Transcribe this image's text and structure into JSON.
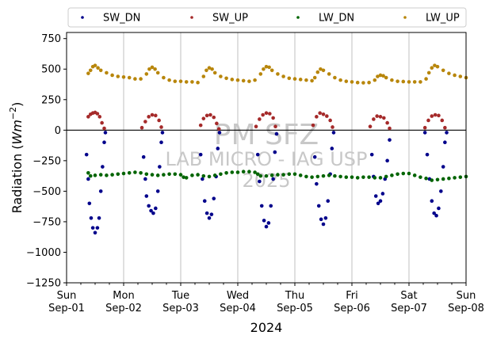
{
  "chart_data": {
    "type": "scatter",
    "xlabel": "2024",
    "ylabel_main": "Radiation (",
    "ylabel_unit": "Wm",
    "ylabel_exp": "−2",
    "ylabel_close": ")",
    "xlim": [
      0,
      7
    ],
    "ylim": [
      -1250,
      800
    ],
    "yticks": [
      {
        "value": 750,
        "label": "750"
      },
      {
        "value": 500,
        "label": "500"
      },
      {
        "value": 250,
        "label": "250"
      },
      {
        "value": 0,
        "label": "0"
      },
      {
        "value": -250,
        "label": "−250"
      },
      {
        "value": -500,
        "label": "−500"
      },
      {
        "value": -750,
        "label": "−750"
      },
      {
        "value": -1000,
        "label": "−1000"
      },
      {
        "value": -1250,
        "label": "−1250"
      }
    ],
    "xticks": [
      {
        "value": 0,
        "line1": "Sun",
        "line2": "Sep-01"
      },
      {
        "value": 1,
        "line1": "Mon",
        "line2": "Sep-02"
      },
      {
        "value": 2,
        "line1": "Tue",
        "line2": "Sep-03"
      },
      {
        "value": 3,
        "line1": "Wed",
        "line2": "Sep-04"
      },
      {
        "value": 4,
        "line1": "Thu",
        "line2": "Sep-05"
      },
      {
        "value": 5,
        "line1": "Fri",
        "line2": "Sep-06"
      },
      {
        "value": 6,
        "line1": "Sat",
        "line2": "Sep-07"
      },
      {
        "value": 7,
        "line1": "Sun",
        "line2": "Sep-08"
      }
    ],
    "grid_x": true,
    "grid_y": false,
    "zero_line": true,
    "legend_position": "top, above plot",
    "watermark": [
      "PM SFZ",
      "LAB MICRO - IAG USP",
      "2025"
    ],
    "series": [
      {
        "name": "SW_DN",
        "color": "#00008b",
        "points": [
          [
            0.35,
            -200
          ],
          [
            0.38,
            -400
          ],
          [
            0.4,
            -600
          ],
          [
            0.43,
            -720
          ],
          [
            0.46,
            -800
          ],
          [
            0.5,
            -840
          ],
          [
            0.54,
            -800
          ],
          [
            0.57,
            -720
          ],
          [
            0.6,
            -500
          ],
          [
            0.63,
            -300
          ],
          [
            0.66,
            -100
          ],
          [
            0.68,
            -20
          ],
          [
            1.35,
            -220
          ],
          [
            1.38,
            -400
          ],
          [
            1.4,
            -540
          ],
          [
            1.44,
            -620
          ],
          [
            1.48,
            -660
          ],
          [
            1.52,
            -680
          ],
          [
            1.56,
            -640
          ],
          [
            1.6,
            -500
          ],
          [
            1.63,
            -300
          ],
          [
            1.66,
            -100
          ],
          [
            1.68,
            -20
          ],
          [
            2.35,
            -200
          ],
          [
            2.38,
            -400
          ],
          [
            2.42,
            -580
          ],
          [
            2.46,
            -680
          ],
          [
            2.5,
            -720
          ],
          [
            2.54,
            -690
          ],
          [
            2.58,
            -560
          ],
          [
            2.62,
            -380
          ],
          [
            2.65,
            -150
          ],
          [
            2.68,
            -20
          ],
          [
            3.35,
            -200
          ],
          [
            3.38,
            -420
          ],
          [
            3.42,
            -620
          ],
          [
            3.46,
            -740
          ],
          [
            3.5,
            -790
          ],
          [
            3.54,
            -760
          ],
          [
            3.58,
            -620
          ],
          [
            3.62,
            -400
          ],
          [
            3.65,
            -180
          ],
          [
            3.68,
            -30
          ],
          [
            4.35,
            -220
          ],
          [
            4.38,
            -440
          ],
          [
            4.42,
            -620
          ],
          [
            4.46,
            -730
          ],
          [
            4.5,
            -770
          ],
          [
            4.54,
            -720
          ],
          [
            4.58,
            -580
          ],
          [
            4.62,
            -360
          ],
          [
            4.65,
            -150
          ],
          [
            4.68,
            -20
          ],
          [
            5.35,
            -200
          ],
          [
            5.38,
            -380
          ],
          [
            5.42,
            -540
          ],
          [
            5.46,
            -600
          ],
          [
            5.5,
            -580
          ],
          [
            5.54,
            -520
          ],
          [
            5.58,
            -400
          ],
          [
            5.62,
            -250
          ],
          [
            5.66,
            -80
          ],
          [
            6.28,
            -20
          ],
          [
            6.32,
            -200
          ],
          [
            6.36,
            -400
          ],
          [
            6.4,
            -580
          ],
          [
            6.44,
            -680
          ],
          [
            6.48,
            -700
          ],
          [
            6.52,
            -640
          ],
          [
            6.56,
            -500
          ],
          [
            6.6,
            -300
          ],
          [
            6.63,
            -100
          ],
          [
            6.66,
            -20
          ]
        ]
      },
      {
        "name": "SW_UP",
        "color": "#a52a2a",
        "points": [
          [
            0.38,
            110
          ],
          [
            0.42,
            130
          ],
          [
            0.46,
            140
          ],
          [
            0.5,
            145
          ],
          [
            0.54,
            135
          ],
          [
            0.58,
            110
          ],
          [
            0.62,
            60
          ],
          [
            0.66,
            15
          ],
          [
            1.32,
            20
          ],
          [
            1.38,
            70
          ],
          [
            1.44,
            110
          ],
          [
            1.5,
            125
          ],
          [
            1.56,
            120
          ],
          [
            1.62,
            80
          ],
          [
            1.66,
            25
          ],
          [
            2.35,
            40
          ],
          [
            2.4,
            95
          ],
          [
            2.46,
            120
          ],
          [
            2.52,
            125
          ],
          [
            2.58,
            105
          ],
          [
            2.63,
            55
          ],
          [
            2.67,
            10
          ],
          [
            3.32,
            30
          ],
          [
            3.38,
            90
          ],
          [
            3.44,
            125
          ],
          [
            3.5,
            140
          ],
          [
            3.56,
            135
          ],
          [
            3.62,
            100
          ],
          [
            3.66,
            30
          ],
          [
            4.32,
            40
          ],
          [
            4.38,
            110
          ],
          [
            4.44,
            140
          ],
          [
            4.5,
            130
          ],
          [
            4.56,
            115
          ],
          [
            4.62,
            80
          ],
          [
            4.66,
            25
          ],
          [
            5.32,
            30
          ],
          [
            5.38,
            90
          ],
          [
            5.44,
            115
          ],
          [
            5.5,
            110
          ],
          [
            5.56,
            100
          ],
          [
            5.62,
            60
          ],
          [
            5.66,
            15
          ],
          [
            6.28,
            20
          ],
          [
            6.34,
            80
          ],
          [
            6.4,
            115
          ],
          [
            6.46,
            125
          ],
          [
            6.52,
            120
          ],
          [
            6.58,
            80
          ],
          [
            6.63,
            20
          ]
        ]
      },
      {
        "name": "LW_DN",
        "color": "#006400",
        "points": [
          [
            0.38,
            -350
          ],
          [
            0.42,
            -375
          ],
          [
            0.5,
            -370
          ],
          [
            0.6,
            -365
          ],
          [
            0.7,
            -370
          ],
          [
            0.8,
            -365
          ],
          [
            0.9,
            -360
          ],
          [
            1.0,
            -355
          ],
          [
            1.1,
            -350
          ],
          [
            1.2,
            -345
          ],
          [
            1.3,
            -350
          ],
          [
            1.4,
            -360
          ],
          [
            1.5,
            -365
          ],
          [
            1.6,
            -370
          ],
          [
            1.7,
            -365
          ],
          [
            1.8,
            -360
          ],
          [
            1.9,
            -360
          ],
          [
            2.0,
            -365
          ],
          [
            2.05,
            -385
          ],
          [
            2.1,
            -390
          ],
          [
            2.2,
            -370
          ],
          [
            2.3,
            -365
          ],
          [
            2.4,
            -375
          ],
          [
            2.5,
            -380
          ],
          [
            2.6,
            -370
          ],
          [
            2.7,
            -360
          ],
          [
            2.8,
            -350
          ],
          [
            2.9,
            -345
          ],
          [
            3.0,
            -345
          ],
          [
            3.1,
            -340
          ],
          [
            3.2,
            -340
          ],
          [
            3.3,
            -345
          ],
          [
            3.35,
            -360
          ],
          [
            3.4,
            -375
          ],
          [
            3.5,
            -375
          ],
          [
            3.6,
            -370
          ],
          [
            3.7,
            -365
          ],
          [
            3.8,
            -365
          ],
          [
            3.9,
            -360
          ],
          [
            4.0,
            -360
          ],
          [
            4.1,
            -370
          ],
          [
            4.2,
            -380
          ],
          [
            4.3,
            -385
          ],
          [
            4.4,
            -380
          ],
          [
            4.5,
            -375
          ],
          [
            4.6,
            -370
          ],
          [
            4.7,
            -375
          ],
          [
            4.8,
            -380
          ],
          [
            4.9,
            -385
          ],
          [
            5.0,
            -385
          ],
          [
            5.1,
            -390
          ],
          [
            5.2,
            -385
          ],
          [
            5.3,
            -385
          ],
          [
            5.4,
            -390
          ],
          [
            5.5,
            -390
          ],
          [
            5.6,
            -380
          ],
          [
            5.7,
            -370
          ],
          [
            5.8,
            -360
          ],
          [
            5.9,
            -355
          ],
          [
            6.0,
            -355
          ],
          [
            6.1,
            -370
          ],
          [
            6.2,
            -385
          ],
          [
            6.3,
            -395
          ],
          [
            6.4,
            -410
          ],
          [
            6.5,
            -405
          ],
          [
            6.6,
            -400
          ],
          [
            6.7,
            -395
          ],
          [
            6.8,
            -390
          ],
          [
            6.9,
            -385
          ],
          [
            7.0,
            -380
          ]
        ]
      },
      {
        "name": "LW_UP",
        "color": "#b8860b",
        "points": [
          [
            0.38,
            465
          ],
          [
            0.42,
            490
          ],
          [
            0.46,
            520
          ],
          [
            0.5,
            530
          ],
          [
            0.55,
            510
          ],
          [
            0.6,
            490
          ],
          [
            0.7,
            470
          ],
          [
            0.8,
            450
          ],
          [
            0.9,
            440
          ],
          [
            1.0,
            435
          ],
          [
            1.1,
            430
          ],
          [
            1.2,
            420
          ],
          [
            1.3,
            420
          ],
          [
            1.4,
            460
          ],
          [
            1.45,
            500
          ],
          [
            1.5,
            515
          ],
          [
            1.55,
            500
          ],
          [
            1.6,
            470
          ],
          [
            1.7,
            430
          ],
          [
            1.8,
            410
          ],
          [
            1.9,
            400
          ],
          [
            2.0,
            400
          ],
          [
            2.1,
            395
          ],
          [
            2.2,
            395
          ],
          [
            2.3,
            390
          ],
          [
            2.4,
            440
          ],
          [
            2.45,
            490
          ],
          [
            2.5,
            510
          ],
          [
            2.55,
            500
          ],
          [
            2.6,
            470
          ],
          [
            2.7,
            440
          ],
          [
            2.8,
            425
          ],
          [
            2.9,
            415
          ],
          [
            3.0,
            410
          ],
          [
            3.1,
            405
          ],
          [
            3.2,
            400
          ],
          [
            3.3,
            410
          ],
          [
            3.4,
            460
          ],
          [
            3.45,
            500
          ],
          [
            3.5,
            520
          ],
          [
            3.55,
            515
          ],
          [
            3.6,
            490
          ],
          [
            3.7,
            460
          ],
          [
            3.8,
            440
          ],
          [
            3.9,
            425
          ],
          [
            4.0,
            420
          ],
          [
            4.1,
            415
          ],
          [
            4.2,
            410
          ],
          [
            4.3,
            405
          ],
          [
            4.35,
            430
          ],
          [
            4.4,
            475
          ],
          [
            4.45,
            500
          ],
          [
            4.5,
            490
          ],
          [
            4.6,
            460
          ],
          [
            4.7,
            430
          ],
          [
            4.8,
            410
          ],
          [
            4.9,
            400
          ],
          [
            5.0,
            395
          ],
          [
            5.1,
            390
          ],
          [
            5.2,
            388
          ],
          [
            5.3,
            390
          ],
          [
            5.4,
            410
          ],
          [
            5.45,
            440
          ],
          [
            5.5,
            450
          ],
          [
            5.55,
            445
          ],
          [
            5.6,
            430
          ],
          [
            5.7,
            410
          ],
          [
            5.8,
            400
          ],
          [
            5.9,
            398
          ],
          [
            6.0,
            395
          ],
          [
            6.1,
            395
          ],
          [
            6.2,
            395
          ],
          [
            6.3,
            420
          ],
          [
            6.35,
            470
          ],
          [
            6.4,
            510
          ],
          [
            6.45,
            530
          ],
          [
            6.5,
            520
          ],
          [
            6.6,
            490
          ],
          [
            6.7,
            465
          ],
          [
            6.8,
            450
          ],
          [
            6.9,
            440
          ],
          [
            7.0,
            430
          ]
        ]
      }
    ]
  }
}
